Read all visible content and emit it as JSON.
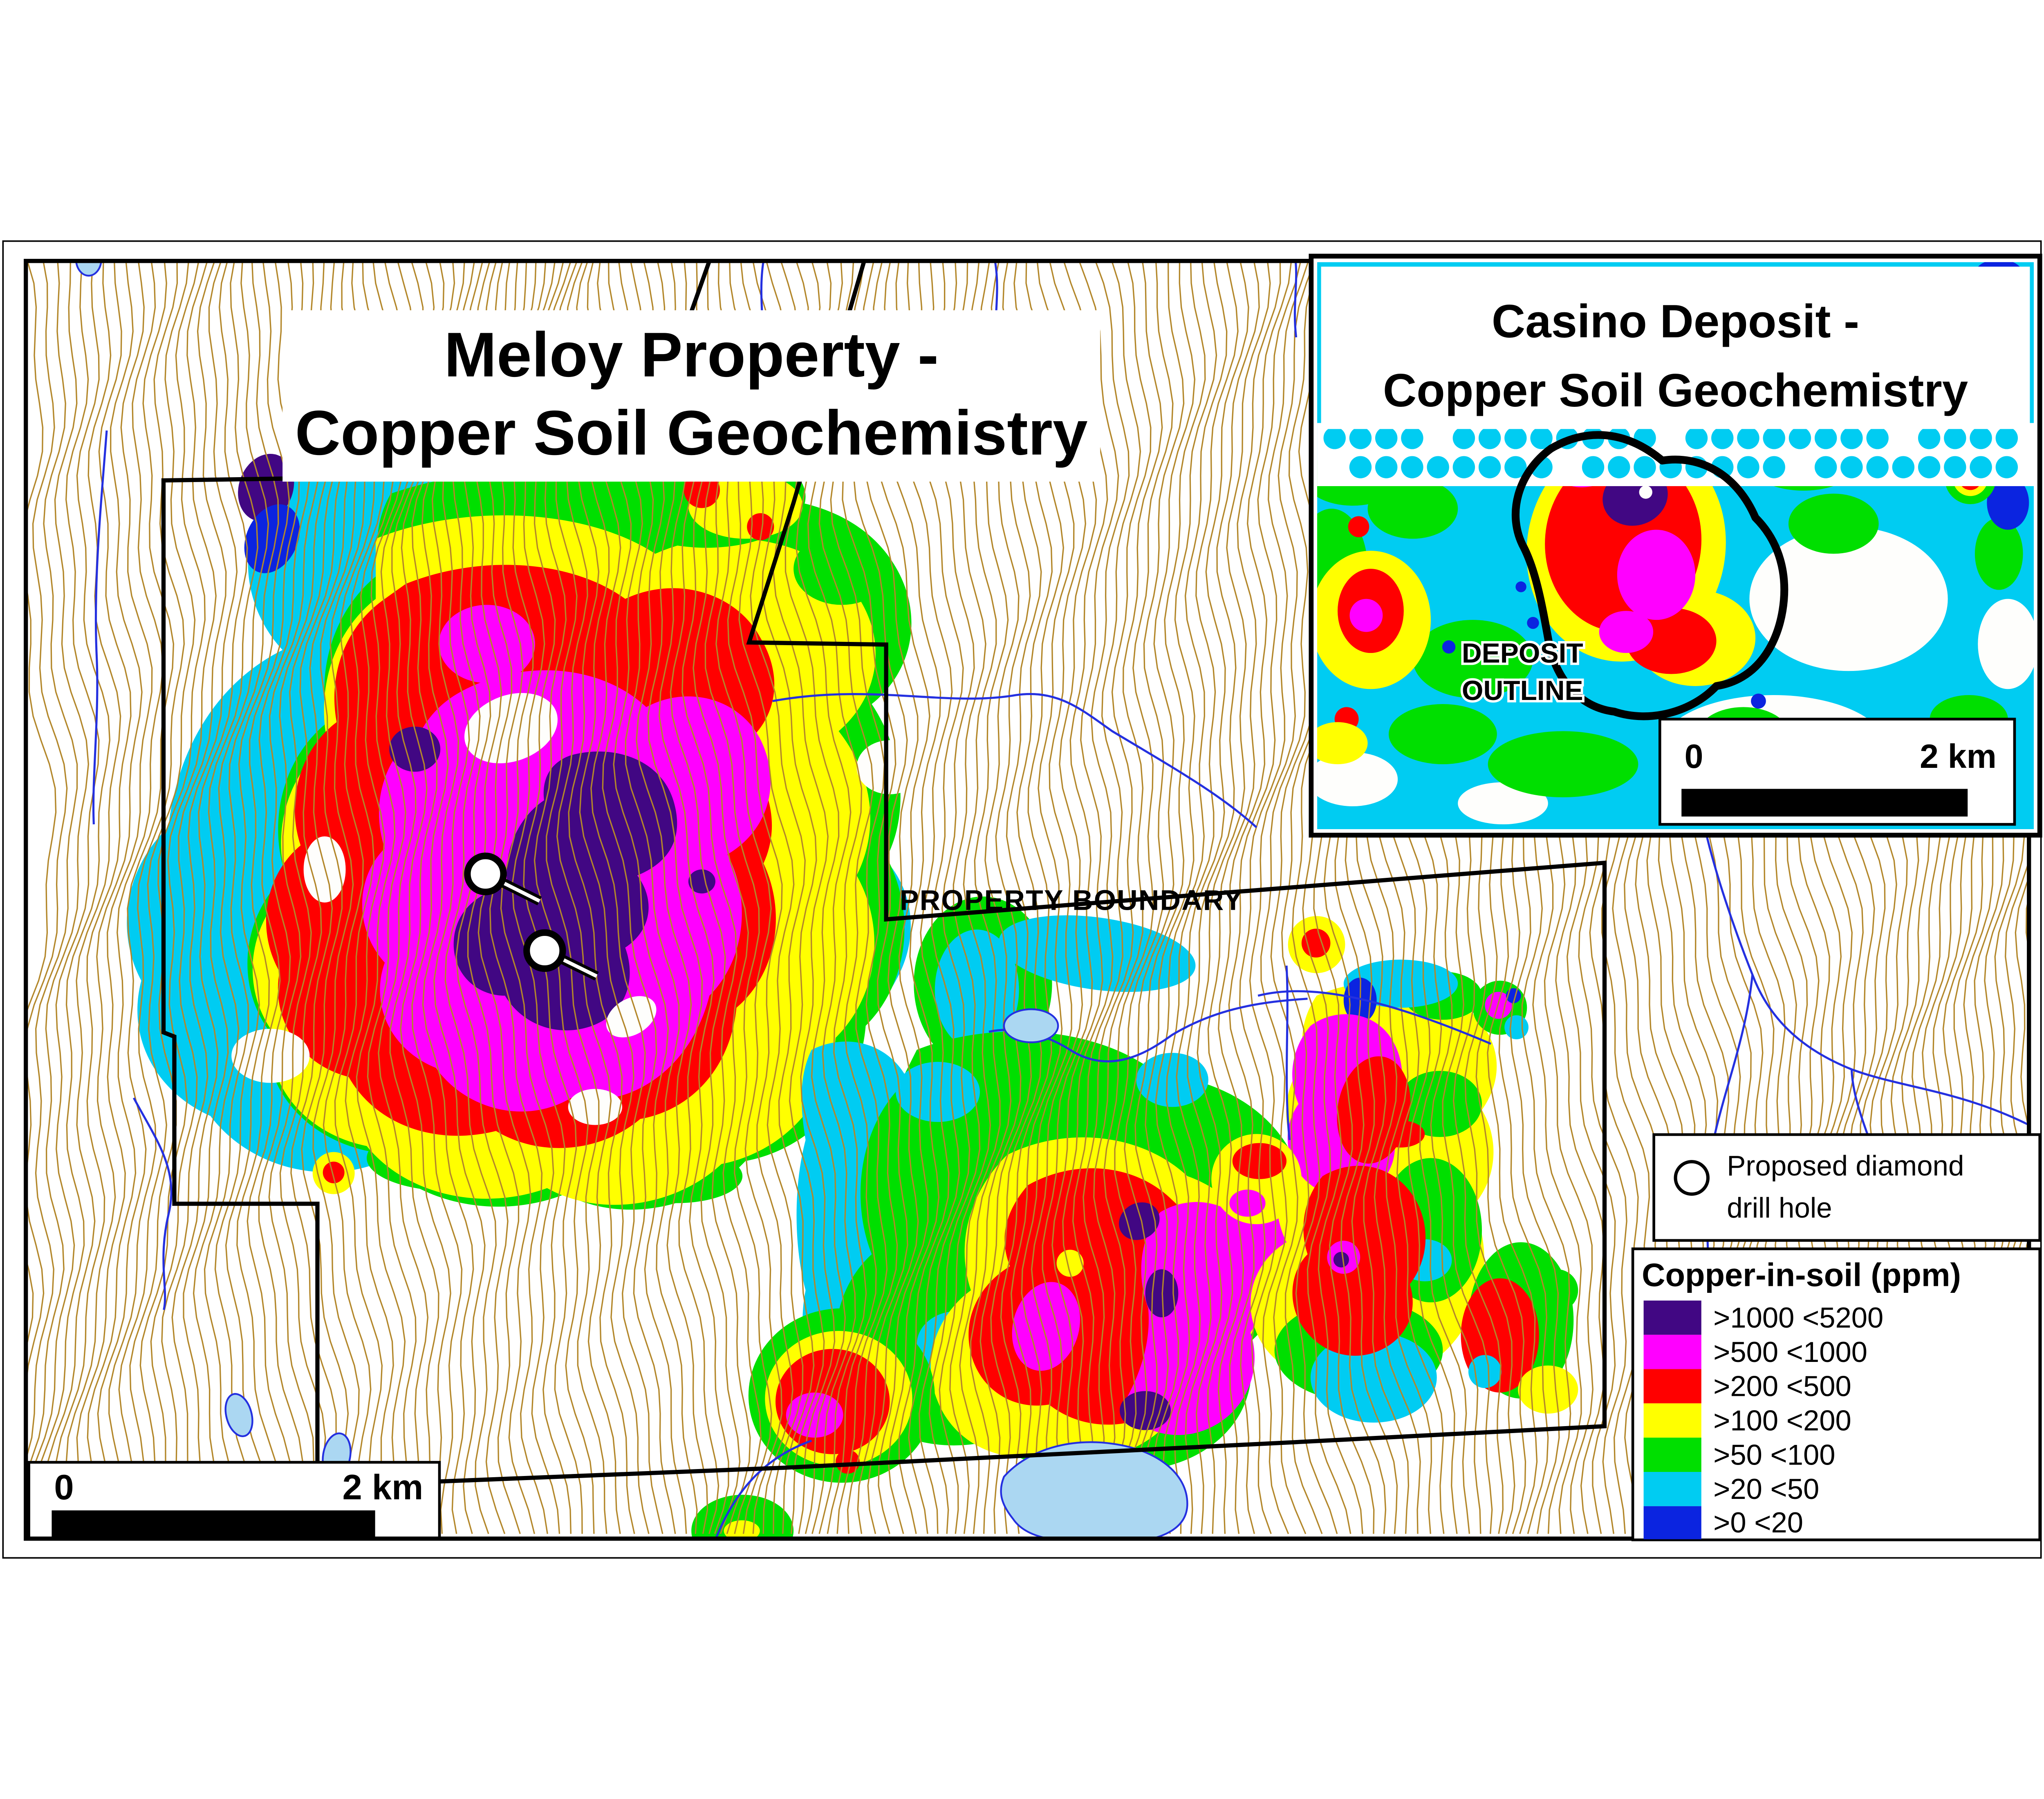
{
  "colors": {
    "purple": "#410783",
    "magenta": "#FF00FF",
    "red": "#FF0000",
    "yellow": "#FFFF00",
    "green": "#00DF00",
    "cyan": "#00CCF2",
    "blue": "#0B24E0",
    "contour": "#B3872A",
    "stream": "#2430E0",
    "lake_fill": "#ABD7F2"
  },
  "main_map": {
    "title_line1": "Meloy Property -",
    "title_line2": "Copper Soil Geochemistry",
    "boundary_label": "PROPERTY BOUNDARY",
    "scale": {
      "left": "0",
      "right": "2 km"
    }
  },
  "inset_map": {
    "title_line1": "Casino Deposit -",
    "title_line2": "Copper Soil Geochemistry",
    "deposit_line1": "DEPOSIT",
    "deposit_line2": "OUTLINE",
    "scale": {
      "left": "0",
      "right": "2 km"
    }
  },
  "legend": {
    "drill": {
      "line1": "Proposed diamond",
      "line2": "drill hole"
    },
    "header": "Copper-in-soil (ppm)",
    "classes": [
      {
        "label": ">1000 <5200",
        "color": "#410783"
      },
      {
        "label": ">500 <1000",
        "color": "#FF00FF"
      },
      {
        "label": ">200 <500",
        "color": "#FF0000"
      },
      {
        "label": ">100 <200",
        "color": "#FFFF00"
      },
      {
        "label": ">50 <100",
        "color": "#00DF00"
      },
      {
        "label": ">20 <50",
        "color": "#00CCF2"
      },
      {
        "label": ">0 <20",
        "color": "#0B24E0"
      }
    ]
  }
}
